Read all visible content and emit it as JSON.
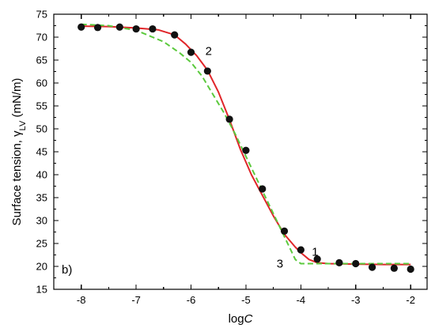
{
  "chart_data": {
    "type": "scatter",
    "title": "",
    "panel_label": "b)",
    "xlabel": "logC",
    "xlabel_parts": {
      "plain": "log",
      "italic": "C"
    },
    "ylabel": "Surface tension, γLV (mN/m)",
    "ylabel_parts": {
      "before": "Surface tension, γ",
      "subscript": "LV",
      "after": " (mN/m)"
    },
    "xlim": [
      -8.5,
      -1.7
    ],
    "ylim": [
      15,
      75
    ],
    "x_ticks": [
      -8,
      -7,
      -6,
      -5,
      -4,
      -3,
      -2
    ],
    "y_ticks": [
      15,
      20,
      25,
      30,
      35,
      40,
      45,
      50,
      55,
      60,
      65,
      70,
      75
    ],
    "grid": false,
    "series": [
      {
        "kind": "points",
        "color": "#111111",
        "x": [
          -8.0,
          -7.7,
          -7.3,
          -7.0,
          -6.7,
          -6.3,
          -6.0,
          -5.7,
          -5.3,
          -5.0,
          -4.7,
          -4.3,
          -4.0,
          -3.7,
          -3.3,
          -3.0,
          -2.7,
          -2.3,
          -2.0
        ],
        "y": [
          72.2,
          72.1,
          72.2,
          71.8,
          71.8,
          70.5,
          66.7,
          62.6,
          52.1,
          45.3,
          36.9,
          27.7,
          23.6,
          21.6,
          20.8,
          20.6,
          19.8,
          19.6,
          19.4
        ]
      },
      {
        "kind": "line",
        "style": "solid",
        "color": "#e0262a",
        "x": [
          -8.0,
          -7.5,
          -7.0,
          -6.6,
          -6.3,
          -6.1,
          -5.9,
          -5.7,
          -5.5,
          -5.3,
          -5.1,
          -4.9,
          -4.7,
          -4.5,
          -4.3,
          -4.1,
          -4.0,
          -3.85,
          -3.7,
          -3.5,
          -3.0,
          -2.5,
          -2.0
        ],
        "y": [
          72.4,
          72.3,
          72.0,
          71.6,
          70.5,
          68.5,
          66.0,
          62.8,
          58.0,
          52.0,
          45.5,
          40.0,
          35.5,
          31.0,
          27.0,
          24.2,
          23.0,
          21.5,
          20.8,
          20.6,
          20.5,
          20.4,
          20.4
        ]
      },
      {
        "kind": "line",
        "style": "dashed",
        "color": "#5bc93d",
        "x": [
          -8.0,
          -7.5,
          -7.0,
          -6.5,
          -6.2,
          -6.0,
          -5.8,
          -5.6,
          -5.4,
          -5.2,
          -5.0,
          -4.8,
          -4.6,
          -4.4,
          -4.2,
          -4.1,
          -4.0,
          -3.5,
          -3.0,
          -2.5,
          -2.0
        ],
        "y": [
          72.8,
          72.5,
          71.5,
          69.0,
          66.5,
          64.5,
          61.5,
          57.5,
          53.5,
          49.0,
          44.0,
          39.0,
          34.0,
          29.0,
          24.0,
          21.5,
          20.6,
          20.6,
          20.6,
          20.6,
          20.6
        ]
      }
    ],
    "annotations": [
      {
        "text": "1",
        "x": -3.74,
        "y": 23.2
      },
      {
        "text": "2",
        "x": -5.68,
        "y": 67.0
      },
      {
        "text": "3",
        "x": -4.38,
        "y": 20.6
      }
    ]
  }
}
